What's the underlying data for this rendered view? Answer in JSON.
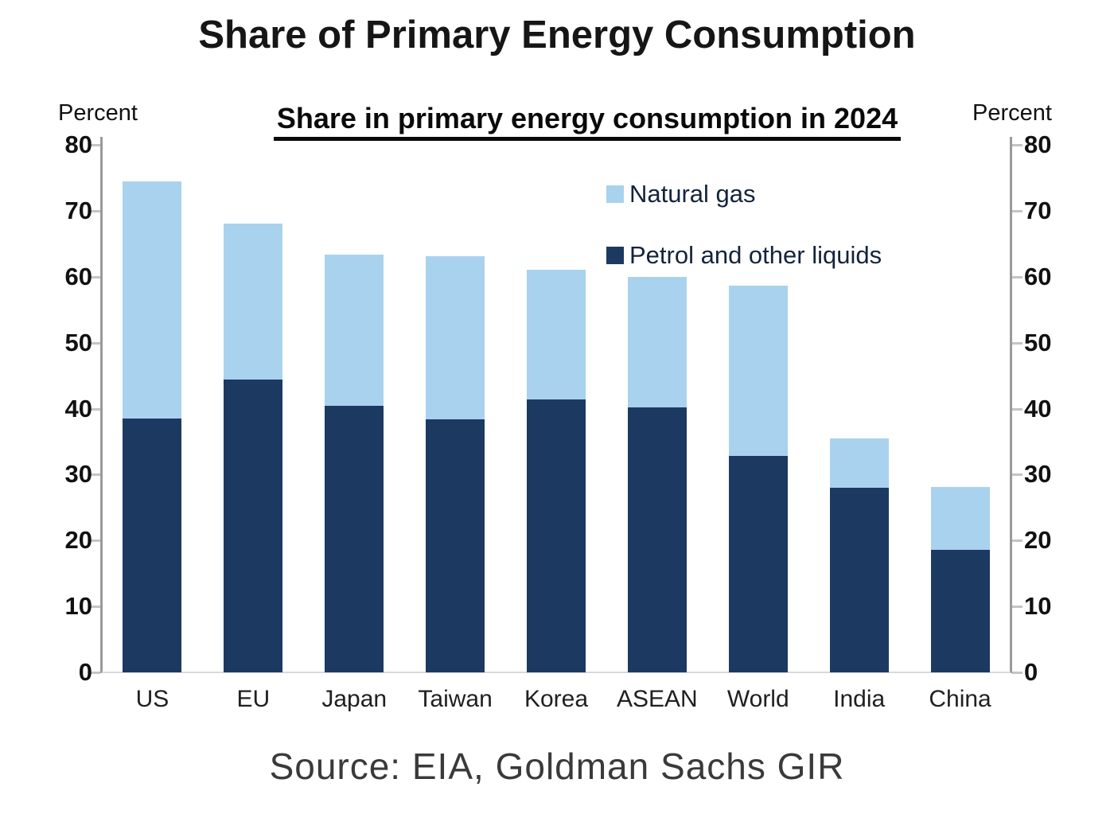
{
  "header": {
    "title": "Share of Primary Energy Consumption"
  },
  "footer": {
    "source": "Source: EIA, Goldman Sachs GIR"
  },
  "chart_data": {
    "type": "bar",
    "stacked": true,
    "title": "Share in primary energy consumption in 2024",
    "axis_label_left": "Percent",
    "axis_label_right": "Percent",
    "ylim": [
      0,
      80
    ],
    "yticks": [
      0,
      10,
      20,
      30,
      40,
      50,
      60,
      70,
      80
    ],
    "grid": false,
    "legend_position": "upper-right-inside",
    "categories": [
      "US",
      "EU",
      "Japan",
      "Taiwan",
      "Korea",
      "ASEAN",
      "World",
      "India",
      "China"
    ],
    "series": [
      {
        "name": "Petrol and other liquids",
        "color": "#1c3a61",
        "values": [
          38.5,
          44.4,
          40.4,
          38.4,
          41.4,
          40.2,
          32.8,
          28.0,
          18.6
        ]
      },
      {
        "name": "Natural gas",
        "color": "#a9d2ee",
        "values": [
          35.9,
          23.6,
          22.9,
          24.7,
          19.6,
          19.8,
          25.8,
          7.5,
          9.5
        ]
      }
    ],
    "stacked_totals": [
      74.4,
      68.0,
      63.3,
      63.1,
      61.0,
      60.0,
      58.6,
      35.5,
      28.1
    ],
    "legend": [
      {
        "label": "Natural gas",
        "color": "#a9d2ee"
      },
      {
        "label": "Petrol and other liquids",
        "color": "#1c3a61"
      }
    ],
    "axis_color": "#9a9a9a",
    "tick_color": "#c4c4c4",
    "baseline_color": "#d9d9d9"
  }
}
